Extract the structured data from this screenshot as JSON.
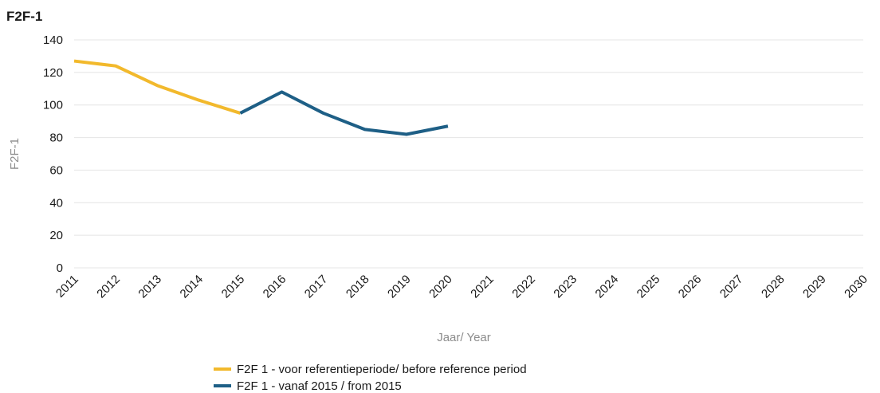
{
  "chart_data": {
    "type": "line",
    "title": "F2F-1",
    "xlabel": "Jaar/ Year",
    "ylabel": "F2F-1",
    "categories": [
      "2011",
      "2012",
      "2013",
      "2014",
      "2015",
      "2016",
      "2017",
      "2018",
      "2019",
      "2020",
      "2021",
      "2022",
      "2023",
      "2024",
      "2025",
      "2026",
      "2027",
      "2028",
      "2029",
      "2030"
    ],
    "yticks": [
      "0",
      "20",
      "40",
      "60",
      "80",
      "100",
      "120",
      "140"
    ],
    "ylim": [
      0,
      140
    ],
    "grid": true,
    "legend_position": "bottom",
    "series": [
      {
        "name": "F2F 1 - voor referentieperiode/ before reference period",
        "color": "#F2B92C",
        "points": [
          {
            "x": "2011",
            "y": 127
          },
          {
            "x": "2012",
            "y": 124
          },
          {
            "x": "2013",
            "y": 112
          },
          {
            "x": "2014",
            "y": 103
          },
          {
            "x": "2015",
            "y": 95
          }
        ]
      },
      {
        "name": "F2F 1 - vanaf 2015 / from 2015",
        "color": "#1E5F86",
        "points": [
          {
            "x": "2015",
            "y": 95
          },
          {
            "x": "2016",
            "y": 108
          },
          {
            "x": "2017",
            "y": 95
          },
          {
            "x": "2018",
            "y": 85
          },
          {
            "x": "2019",
            "y": 82
          },
          {
            "x": "2020",
            "y": 87
          }
        ]
      }
    ]
  }
}
